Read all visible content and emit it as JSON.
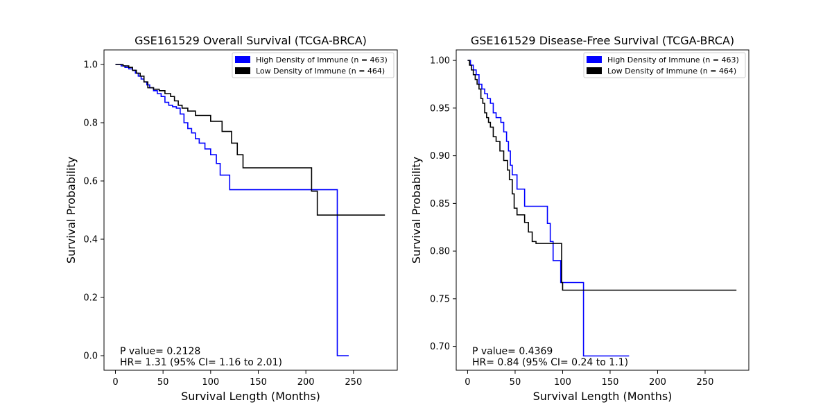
{
  "figure": {
    "background": "#ffffff"
  },
  "chart_data": [
    {
      "type": "line",
      "step": true,
      "title": "GSE161529 Overall Survival (TCGA-BRCA)",
      "xlabel": "Survival Length (Months)",
      "ylabel": "Survival Probability",
      "xlim": [
        -12,
        296
      ],
      "ylim": [
        -0.05,
        1.05
      ],
      "xticks": [
        0,
        50,
        100,
        150,
        200,
        250
      ],
      "xtick_labels": [
        "0",
        "50",
        "100",
        "150",
        "200",
        "250"
      ],
      "yticks": [
        0.0,
        0.2,
        0.4,
        0.6,
        0.8,
        1.0
      ],
      "ytick_labels": [
        "0.0",
        "0.2",
        "0.4",
        "0.6",
        "0.8",
        "1.0"
      ],
      "grid": false,
      "legend_position": "top-right",
      "annotation": [
        "P value= 0.2128",
        "HR= 1.31 (95% CI= 1.16 to 2.01)"
      ],
      "series": [
        {
          "name": "High Density of Immune (n = 463)",
          "color": "#0000ff",
          "x": [
            0,
            6,
            10,
            14,
            18,
            21,
            24,
            27,
            30,
            33,
            36,
            40,
            44,
            48,
            52,
            56,
            60,
            64,
            68,
            72,
            76,
            80,
            84,
            88,
            94,
            100,
            106,
            110,
            120,
            150,
            180,
            205,
            215,
            233,
            245
          ],
          "y": [
            1.0,
            0.995,
            0.99,
            0.985,
            0.98,
            0.97,
            0.96,
            0.95,
            0.94,
            0.93,
            0.92,
            0.91,
            0.9,
            0.89,
            0.87,
            0.86,
            0.855,
            0.85,
            0.83,
            0.8,
            0.78,
            0.765,
            0.745,
            0.73,
            0.71,
            0.69,
            0.66,
            0.62,
            0.57,
            0.57,
            0.57,
            0.57,
            0.57,
            0.0,
            0.0
          ]
        },
        {
          "name": "Low Density of Immune (n = 464)",
          "color": "#000000",
          "x": [
            0,
            8,
            14,
            18,
            22,
            26,
            30,
            34,
            40,
            46,
            52,
            58,
            62,
            66,
            70,
            76,
            84,
            100,
            112,
            122,
            128,
            134,
            150,
            180,
            206,
            212,
            240,
            283
          ],
          "y": [
            1.0,
            0.995,
            0.99,
            0.98,
            0.97,
            0.96,
            0.94,
            0.92,
            0.915,
            0.91,
            0.9,
            0.89,
            0.875,
            0.86,
            0.85,
            0.84,
            0.825,
            0.805,
            0.77,
            0.73,
            0.69,
            0.645,
            0.645,
            0.645,
            0.565,
            0.483,
            0.483,
            0.483
          ]
        }
      ]
    },
    {
      "type": "line",
      "step": true,
      "title": "GSE161529 Disease-Free Survival (TCGA-BRCA)",
      "xlabel": "Survival Length (Months)",
      "ylabel": "Survival Probability",
      "xlim": [
        -12,
        296
      ],
      "ylim": [
        0.675,
        1.011
      ],
      "xticks": [
        0,
        50,
        100,
        150,
        200,
        250
      ],
      "xtick_labels": [
        "0",
        "50",
        "100",
        "150",
        "200",
        "250"
      ],
      "yticks": [
        0.7,
        0.75,
        0.8,
        0.85,
        0.9,
        0.95,
        1.0
      ],
      "ytick_labels": [
        "0.70",
        "0.75",
        "0.80",
        "0.85",
        "0.90",
        "0.95",
        "1.00"
      ],
      "grid": false,
      "legend_position": "top-right",
      "annotation": [
        "P value= 0.4369",
        "HR= 0.84 (95% CI= 0.24 to 1.1)"
      ],
      "series": [
        {
          "name": "High Density of Immune (n = 463)",
          "color": "#0000ff",
          "x": [
            0,
            3,
            6,
            9,
            12,
            15,
            18,
            21,
            24,
            27,
            30,
            35,
            38,
            41,
            43,
            45,
            47,
            52,
            55,
            60,
            70,
            84,
            87,
            90,
            98,
            122,
            145,
            170
          ],
          "y": [
            1.0,
            0.995,
            0.99,
            0.985,
            0.975,
            0.97,
            0.965,
            0.96,
            0.955,
            0.945,
            0.94,
            0.935,
            0.925,
            0.915,
            0.905,
            0.89,
            0.88,
            0.865,
            0.865,
            0.847,
            0.847,
            0.829,
            0.81,
            0.79,
            0.767,
            0.69,
            0.69,
            0.69
          ]
        },
        {
          "name": "Low Density of Immune (n = 464)",
          "color": "#000000",
          "x": [
            0,
            2,
            4,
            6,
            8,
            10,
            12,
            14,
            16,
            18,
            20,
            22,
            24,
            27,
            30,
            34,
            38,
            42,
            44,
            47,
            49,
            52,
            60,
            64,
            68,
            72,
            99,
            100,
            130,
            200,
            283
          ],
          "y": [
            1.0,
            0.995,
            0.99,
            0.985,
            0.98,
            0.975,
            0.97,
            0.96,
            0.955,
            0.945,
            0.94,
            0.935,
            0.93,
            0.92,
            0.915,
            0.905,
            0.895,
            0.885,
            0.875,
            0.86,
            0.845,
            0.838,
            0.83,
            0.82,
            0.81,
            0.808,
            0.767,
            0.759,
            0.759,
            0.759,
            0.759
          ]
        }
      ]
    }
  ]
}
